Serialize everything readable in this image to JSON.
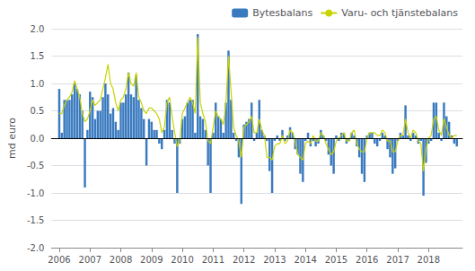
{
  "chart_data": {
    "type": "bar",
    "ylabel": "md euro",
    "x": [
      2006,
      2006.0833333333333,
      2006.1666666666667,
      2006.25,
      2006.3333333333333,
      2006.4166666666667,
      2006.5,
      2006.5833333333333,
      2006.6666666666667,
      2006.75,
      2006.8333333333333,
      2006.9166666666667,
      2007,
      2007.0833333333333,
      2007.1666666666667,
      2007.25,
      2007.3333333333333,
      2007.4166666666667,
      2007.5,
      2007.5833333333333,
      2007.6666666666667,
      2007.75,
      2007.8333333333333,
      2007.9166666666667,
      2008,
      2008.0833333333333,
      2008.1666666666667,
      2008.25,
      2008.3333333333333,
      2008.4166666666667,
      2008.5,
      2008.5833333333333,
      2008.6666666666667,
      2008.75,
      2008.8333333333333,
      2008.9166666666667,
      2009,
      2009.0833333333333,
      2009.1666666666667,
      2009.25,
      2009.3333333333333,
      2009.4166666666667,
      2009.5,
      2009.5833333333333,
      2009.6666666666667,
      2009.75,
      2009.8333333333333,
      2009.9166666666667,
      2010,
      2010.0833333333333,
      2010.1666666666667,
      2010.25,
      2010.3333333333333,
      2010.4166666666667,
      2010.5,
      2010.5833333333333,
      2010.6666666666667,
      2010.75,
      2010.8333333333333,
      2010.9166666666667,
      2011,
      2011.0833333333333,
      2011.1666666666667,
      2011.25,
      2011.3333333333333,
      2011.4166666666667,
      2011.5,
      2011.5833333333333,
      2011.6666666666667,
      2011.75,
      2011.8333333333333,
      2011.9166666666667,
      2012,
      2012.0833333333333,
      2012.1666666666667,
      2012.25,
      2012.3333333333333,
      2012.4166666666667,
      2012.5,
      2012.5833333333333,
      2012.6666666666667,
      2012.75,
      2012.8333333333333,
      2012.9166666666667,
      2013,
      2013.0833333333333,
      2013.1666666666667,
      2013.25,
      2013.3333333333333,
      2013.4166666666667,
      2013.5,
      2013.5833333333333,
      2013.6666666666667,
      2013.75,
      2013.8333333333333,
      2013.9166666666667,
      2014,
      2014.0833333333333,
      2014.1666666666667,
      2014.25,
      2014.3333333333333,
      2014.4166666666667,
      2014.5,
      2014.5833333333333,
      2014.6666666666667,
      2014.75,
      2014.8333333333333,
      2014.9166666666667,
      2015,
      2015.0833333333333,
      2015.1666666666667,
      2015.25,
      2015.3333333333333,
      2015.4166666666667,
      2015.5,
      2015.5833333333333,
      2015.6666666666667,
      2015.75,
      2015.8333333333333,
      2015.9166666666667,
      2016,
      2016.0833333333333,
      2016.1666666666667,
      2016.25,
      2016.3333333333333,
      2016.4166666666667,
      2016.5,
      2016.5833333333333,
      2016.6666666666667,
      2016.75,
      2016.8333333333333,
      2016.9166666666667,
      2017,
      2017.0833333333333,
      2017.1666666666667,
      2017.25,
      2017.3333333333333,
      2017.4166666666667,
      2017.5,
      2017.5833333333333,
      2017.6666666666667,
      2017.75,
      2017.8333333333333,
      2017.9166666666667,
      2018,
      2018.0833333333333,
      2018.1666666666667,
      2018.25,
      2018.3333333333333,
      2018.4166666666667,
      2018.5,
      2018.5833333333333,
      2018.6666666666667,
      2018.75,
      2018.8333333333333,
      2018.9166666666667
    ],
    "series": [
      {
        "name": "Bytesbalans",
        "type": "bar",
        "color": "#3a7abf",
        "values": [
          0.9,
          0.1,
          0.7,
          0.7,
          0.7,
          0.8,
          1.0,
          0.9,
          0.8,
          0.5,
          -0.9,
          0.15,
          0.85,
          0.75,
          0.35,
          0.5,
          0.5,
          0.75,
          1.0,
          0.8,
          0.45,
          0.55,
          0.3,
          0.15,
          0.65,
          0.65,
          0.8,
          1.2,
          0.8,
          0.75,
          1.15,
          0.7,
          0.55,
          0.35,
          -0.5,
          0.35,
          0.3,
          0.15,
          0.15,
          -0.1,
          -0.2,
          0.15,
          0.7,
          0.65,
          0.15,
          -0.1,
          -1.0,
          -0.1,
          0.35,
          0.4,
          0.65,
          0.7,
          0.7,
          0.1,
          1.9,
          0.4,
          0.35,
          0.15,
          -0.5,
          -1.0,
          0.1,
          0.65,
          0.4,
          0.35,
          0.1,
          0.65,
          1.6,
          0.7,
          0.1,
          -0.05,
          -0.35,
          -1.2,
          0.25,
          0.3,
          0.35,
          0.65,
          -0.05,
          0.1,
          0.7,
          0.15,
          0.05,
          -0.05,
          -0.6,
          -1.0,
          -0.05,
          0.05,
          -0.05,
          0.15,
          -0.05,
          0.05,
          0.2,
          0.1,
          -0.2,
          -0.3,
          -0.65,
          -0.8,
          -0.05,
          0.1,
          -0.15,
          -0.05,
          -0.15,
          -0.1,
          0.15,
          0.05,
          -0.05,
          -0.3,
          -0.5,
          -0.65,
          0.05,
          -0.05,
          0.1,
          0.1,
          -0.1,
          -0.05,
          0.1,
          0.05,
          -0.15,
          -0.35,
          -0.65,
          -0.8,
          0.05,
          0.1,
          0.1,
          -0.1,
          -0.15,
          -0.05,
          0.1,
          0.05,
          -0.2,
          -0.35,
          -0.65,
          -0.55,
          -0.05,
          0.1,
          0.05,
          0.6,
          0.05,
          -0.05,
          0.1,
          0.05,
          -0.1,
          -0.05,
          -1.05,
          -0.45,
          -0.1,
          -0.05,
          0.65,
          0.65,
          0.1,
          -0.05,
          0.65,
          0.4,
          0.3,
          0.05,
          -0.1,
          -0.15
        ]
      },
      {
        "name": "Varu- och tjänstebalans",
        "type": "line",
        "color": "#c8d400",
        "values": [
          0.45,
          0.45,
          0.6,
          0.7,
          0.75,
          0.85,
          1.05,
          0.9,
          0.75,
          0.45,
          0.3,
          0.35,
          0.5,
          0.7,
          0.6,
          0.65,
          0.7,
          0.9,
          1.1,
          1.35,
          1.0,
          0.9,
          0.65,
          0.5,
          0.7,
          0.75,
          0.9,
          1.2,
          1.0,
          0.95,
          1.2,
          0.75,
          0.65,
          0.5,
          0.45,
          0.55,
          0.55,
          0.5,
          0.45,
          0.35,
          0.1,
          0.2,
          0.65,
          0.75,
          0.4,
          0.1,
          -0.15,
          -0.05,
          0.45,
          0.55,
          0.65,
          0.75,
          0.65,
          0.45,
          1.85,
          0.65,
          0.45,
          0.3,
          -0.05,
          -0.1,
          0.2,
          0.5,
          0.4,
          0.35,
          0.25,
          0.65,
          1.5,
          0.85,
          0.2,
          0.05,
          -0.05,
          -0.35,
          0.2,
          0.25,
          0.3,
          0.4,
          0.1,
          0.1,
          0.35,
          0.15,
          0.05,
          -0.35,
          -0.35,
          -0.4,
          -0.15,
          -0.1,
          -0.1,
          0.05,
          -0.1,
          -0.05,
          0.15,
          0.1,
          -0.05,
          -0.3,
          -0.35,
          -0.4,
          -0.1,
          -0.05,
          -0.1,
          0.05,
          -0.05,
          -0.05,
          0.1,
          0.05,
          -0.1,
          -0.2,
          -0.3,
          -0.25,
          -0.05,
          0.0,
          0.05,
          0.1,
          -0.05,
          -0.05,
          0.1,
          0.15,
          -0.1,
          -0.2,
          -0.25,
          -0.25,
          0.0,
          0.1,
          0.1,
          0.1,
          0.05,
          0.05,
          0.15,
          0.1,
          -0.05,
          -0.05,
          -0.25,
          -0.25,
          -0.05,
          0.05,
          0.05,
          0.35,
          0.1,
          0.0,
          0.15,
          0.1,
          -0.05,
          -0.1,
          -0.6,
          -0.2,
          0.0,
          0.05,
          0.35,
          0.4,
          0.15,
          0.05,
          0.35,
          0.2,
          0.05,
          0.0,
          0.05,
          0.05
        ]
      }
    ],
    "xlim": [
      2005.75,
      2019.1
    ],
    "xticks": [
      2006,
      2007,
      2008,
      2009,
      2010,
      2011,
      2012,
      2013,
      2014,
      2015,
      2016,
      2017,
      2018
    ],
    "ylim": [
      -2.0,
      2.0
    ],
    "yticks": [
      {
        "value": -2.0,
        "label": "-2.0"
      },
      -1.5,
      {
        "value": -1.0,
        "label": "-1.0"
      },
      -0.5,
      {
        "value": 0.0,
        "label": "0.0"
      },
      0.5,
      {
        "value": 1.0,
        "label": "1.0"
      },
      1.5,
      {
        "value": 2.0,
        "label": "2.0"
      }
    ],
    "grid": true,
    "legend": "upper right"
  }
}
